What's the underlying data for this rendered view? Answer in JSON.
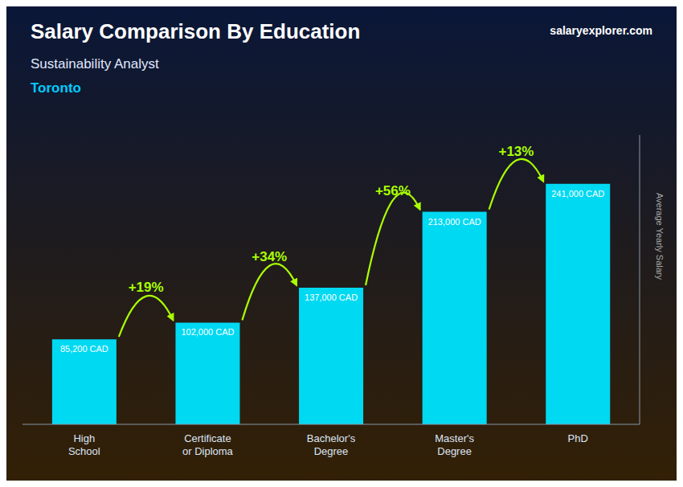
{
  "chart_data": {
    "type": "bar",
    "title": "Salary Comparison By Education",
    "subtitle": [
      "Sustainability Analyst",
      "Toronto"
    ],
    "y_label": "Average Yearly Salary",
    "categories": [
      "High\nSchool",
      "Certificate\nor Diploma",
      "Bachelor's\nDegree",
      "Master's\nDegree",
      "PhD"
    ],
    "values": [
      85200,
      102000,
      137000,
      213000,
      241000
    ],
    "value_labels": [
      "85,200 CAD",
      "102,000 CAD",
      "137,000 CAD",
      "213,000 CAD",
      "241,000 CAD"
    ],
    "data_labels": true,
    "color": "#00d9f2",
    "ylim": [
      0,
      290000
    ],
    "tick_labels": "x",
    "grid": false,
    "annotations": [
      {
        "text": "salaryexplorer.com"
      },
      {
        "text": "+19%",
        "from": 0,
        "to": 1,
        "color": "#aaff00"
      },
      {
        "text": "+34%",
        "from": 1,
        "to": 2,
        "color": "#aaff00"
      },
      {
        "text": "+56%",
        "from": 2,
        "to": 3,
        "color": "#aaff00"
      },
      {
        "text": "+13%",
        "from": 3,
        "to": 4,
        "color": "#aaff00"
      }
    ]
  }
}
